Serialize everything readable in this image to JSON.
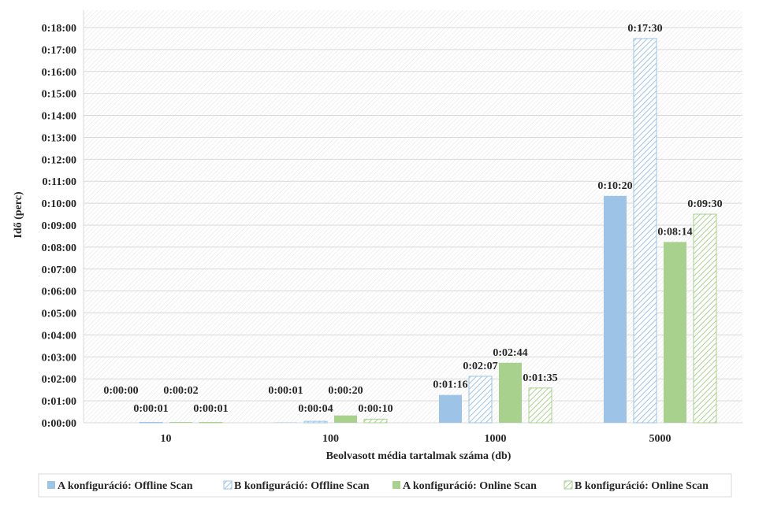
{
  "chart_data": {
    "type": "bar",
    "ylabel": "Idő (perc)",
    "xlabel": "Beolvasott média tartalmak száma (db)",
    "categories": [
      "10",
      "100",
      "1000",
      "5000"
    ],
    "ylim_seconds": [
      0,
      1080
    ],
    "y_tick_step_seconds": 60,
    "y_tick_labels": [
      "0:00:00",
      "0:01:00",
      "0:02:00",
      "0:03:00",
      "0:04:00",
      "0:05:00",
      "0:06:00",
      "0:07:00",
      "0:08:00",
      "0:09:00",
      "0:10:00",
      "0:11:00",
      "0:12:00",
      "0:13:00",
      "0:14:00",
      "0:15:00",
      "0:16:00",
      "0:17:00",
      "0:18:00"
    ],
    "grid": true,
    "legend_position": "bottom",
    "series": [
      {
        "name": "A konfiguráció: Offline Scan",
        "color": "#9dc3e6",
        "pattern": "solid",
        "values_seconds": [
          0,
          1,
          76,
          620
        ],
        "labels": [
          "0:00:00",
          "0:00:01",
          "0:01:16",
          "0:10:20"
        ]
      },
      {
        "name": "B konfiguráció: Offline Scan",
        "color": "#9dc3e6",
        "pattern": "hatched",
        "values_seconds": [
          1,
          4,
          127,
          1050
        ],
        "labels": [
          "0:00:01",
          "0:00:04",
          "0:02:07",
          "0:17:30"
        ]
      },
      {
        "name": "A konfiguráció: Online Scan",
        "color": "#a9d18e",
        "pattern": "solid",
        "values_seconds": [
          2,
          20,
          164,
          494
        ],
        "labels": [
          "0:00:02",
          "0:00:20",
          "0:02:44",
          "0:08:14"
        ]
      },
      {
        "name": "B konfiguráció: Online Scan",
        "color": "#a9d18e",
        "pattern": "hatched",
        "values_seconds": [
          1,
          10,
          95,
          570
        ],
        "labels": [
          "0:00:01",
          "0:00:10",
          "0:01:35",
          "0:09:30"
        ]
      }
    ]
  }
}
